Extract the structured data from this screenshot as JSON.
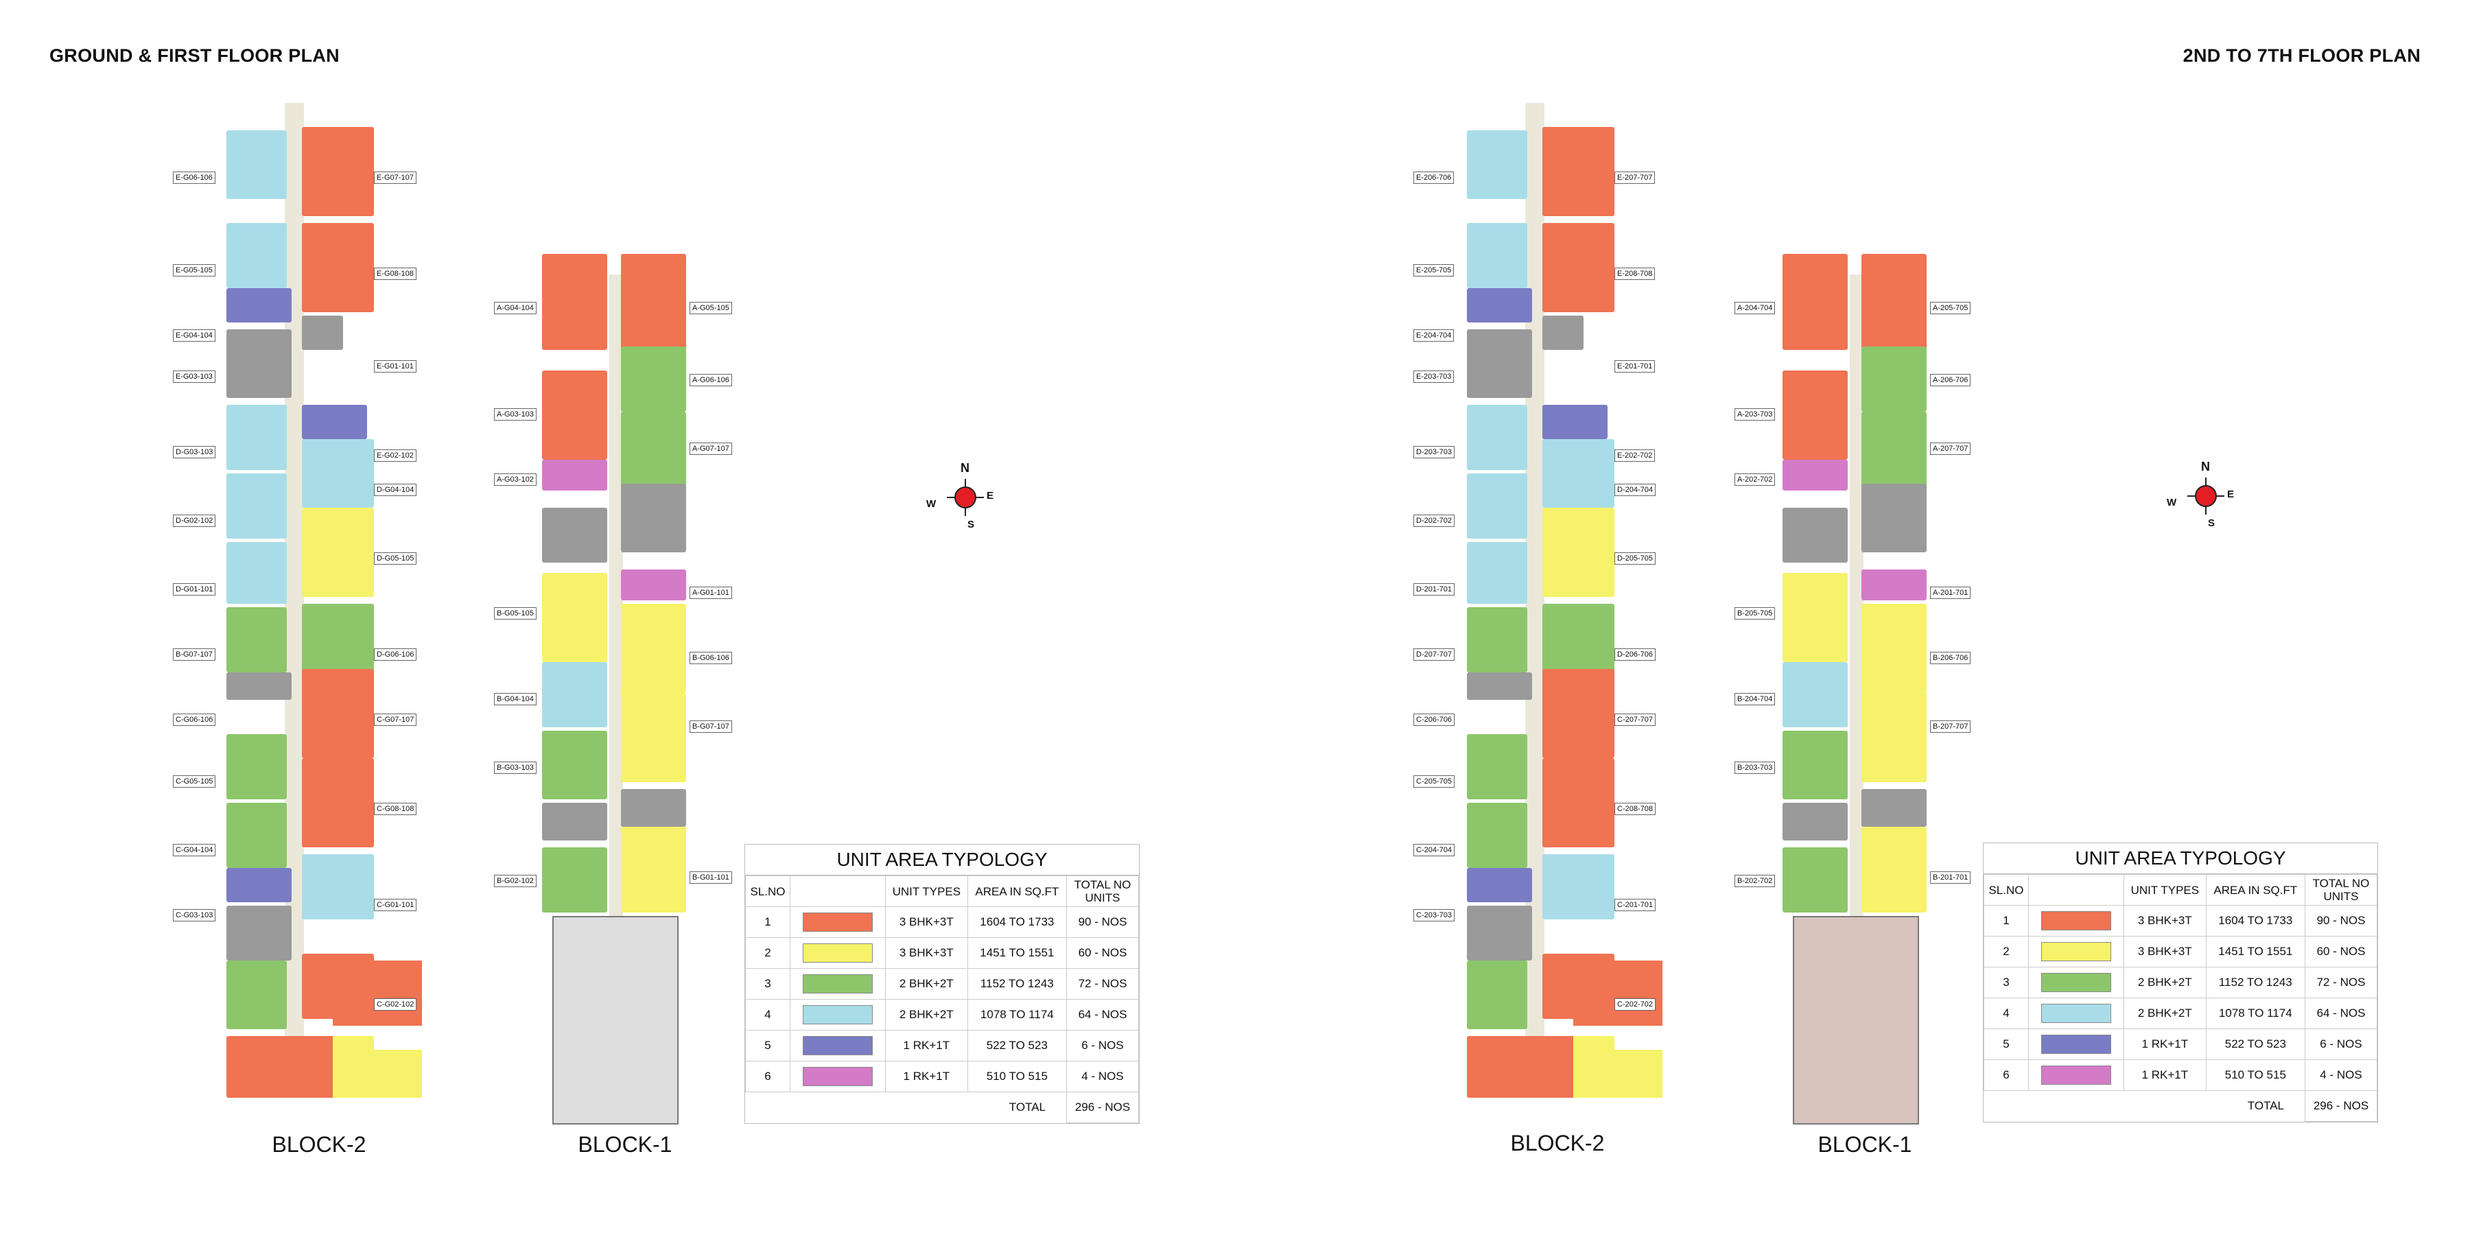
{
  "titles": {
    "left": "GROUND & FIRST FLOOR PLAN",
    "right": "2ND TO 7TH FLOOR PLAN"
  },
  "colors": {
    "orange": "#f07352",
    "yellow": "#f6f26a",
    "green": "#8dc66a",
    "cyan": "#a8dde8",
    "violet": "#7a7cc4",
    "pink": "#d37bc6",
    "corridor": "#ebe8da",
    "grey": "#9a9a9a"
  },
  "compass": {
    "n": "N",
    "s": "S",
    "e": "E",
    "w": "W"
  },
  "left_plan": {
    "block2_label": "BLOCK-2",
    "block1_label": "BLOCK-1",
    "block2_tags_left": [
      "E-G06-106",
      "E-G05-105",
      "E-G04-104",
      "E-G03-103",
      "D-G03-103",
      "D-G02-102",
      "D-G01-101",
      "B-G07-107",
      "C-G06-106",
      "C-G05-105",
      "C-G04-104",
      "C-G03-103"
    ],
    "block2_tags_right": [
      "E-G07-107",
      "E-G08-108",
      "E-G01-101",
      "E-G02-102",
      "D-G04-104",
      "D-G05-105",
      "D-G06-106",
      "C-G07-107",
      "C-G08-108",
      "C-G01-101",
      "C-G02-102"
    ],
    "block1_tags_left": [
      "A-G04-104",
      "A-G03-103",
      "A-G03-102",
      "B-G05-105",
      "B-G04-104",
      "B-G03-103",
      "B-G02-102"
    ],
    "block1_tags_right": [
      "A-G05-105",
      "A-G06-106",
      "A-G07-107",
      "A-G01-101",
      "B-G06-106",
      "B-G07-107",
      "B-G01-101"
    ]
  },
  "right_plan": {
    "block2_label": "BLOCK-2",
    "block1_label": "BLOCK-1",
    "block2_tags_left": [
      "E-206-706",
      "E-205-705",
      "E-204-704",
      "E-203-703",
      "D-203-703",
      "D-202-702",
      "D-201-701",
      "D-207-707",
      "C-206-706",
      "C-205-705",
      "C-204-704",
      "C-203-703"
    ],
    "block2_tags_right": [
      "E-207-707",
      "E-208-708",
      "E-201-701",
      "E-202-702",
      "D-204-704",
      "D-205-705",
      "D-206-706",
      "C-207-707",
      "C-208-708",
      "C-201-701",
      "C-202-702"
    ],
    "block1_tags_left": [
      "A-204-704",
      "A-203-703",
      "A-202-702",
      "B-205-705",
      "B-204-704",
      "B-203-703",
      "B-202-702"
    ],
    "block1_tags_right": [
      "A-205-705",
      "A-206-706",
      "A-207-707",
      "A-201-701",
      "B-206-706",
      "B-207-707",
      "B-201-701"
    ]
  },
  "legend": {
    "title": "UNIT AREA TYPOLOGY",
    "headers": {
      "sl": "SL.NO",
      "type": "UNIT TYPES",
      "area": "AREA IN SQ.FT",
      "total": "TOTAL NO UNITS"
    },
    "rows": [
      {
        "sl": "1",
        "color": "#f07352",
        "type": "3 BHK+3T",
        "area": "1604 TO 1733",
        "total": "90 - NOS"
      },
      {
        "sl": "2",
        "color": "#f6f26a",
        "type": "3 BHK+3T",
        "area": "1451 TO 1551",
        "total": "60 - NOS"
      },
      {
        "sl": "3",
        "color": "#8dc66a",
        "type": "2 BHK+2T",
        "area": "1152 TO 1243",
        "total": "72 - NOS"
      },
      {
        "sl": "4",
        "color": "#a8dde8",
        "type": "2 BHK+2T",
        "area": "1078 TO 1174",
        "total": "64 - NOS"
      },
      {
        "sl": "5",
        "color": "#7a7cc4",
        "type": "1 RK+1T",
        "area": "522 TO 523",
        "total": "6 - NOS"
      },
      {
        "sl": "6",
        "color": "#d37bc6",
        "type": "1 RK+1T",
        "area": "510 TO 515",
        "total": "4 - NOS"
      }
    ],
    "total_label": "TOTAL",
    "total_value": "296 - NOS"
  }
}
